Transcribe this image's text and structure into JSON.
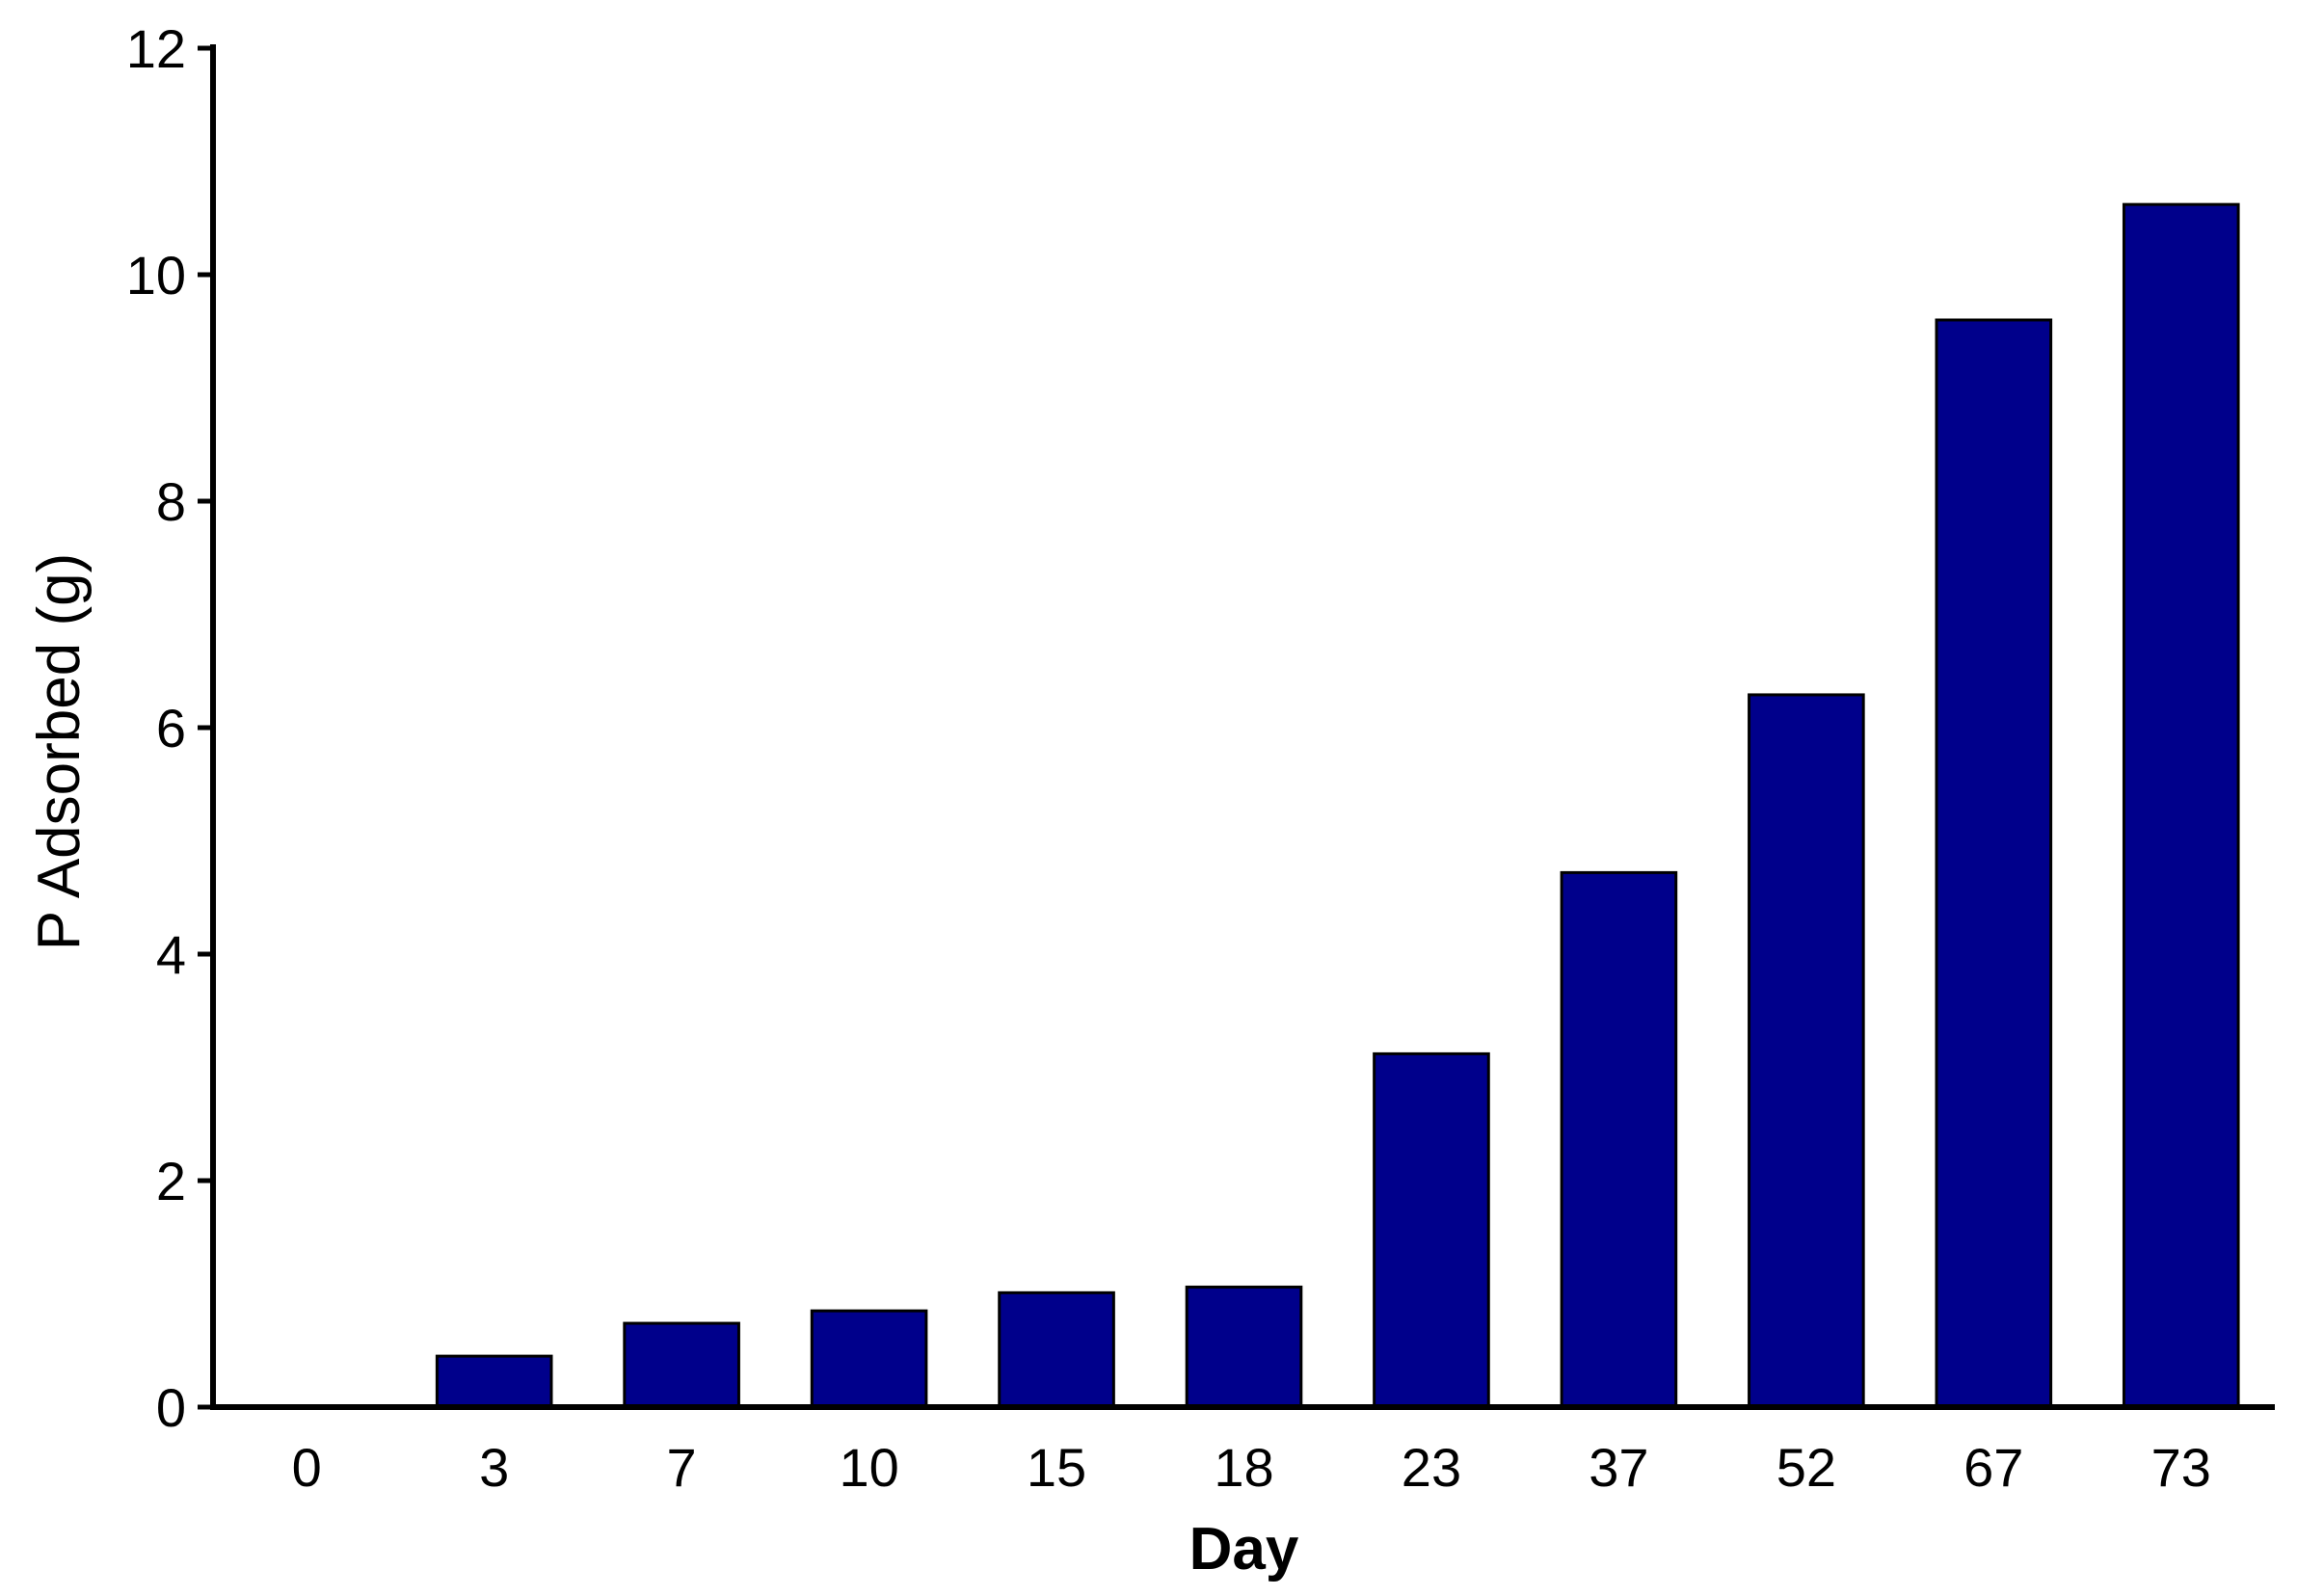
{
  "chart_data": {
    "type": "bar",
    "title": "",
    "xlabel": "Day",
    "ylabel": "P Adsorbed (g)",
    "categories": [
      "0",
      "3",
      "7",
      "10",
      "15",
      "18",
      "23",
      "37",
      "52",
      "67",
      "73"
    ],
    "values": [
      0,
      0.45,
      0.74,
      0.85,
      1.01,
      1.06,
      3.12,
      4.72,
      6.29,
      9.6,
      10.62
    ],
    "ylim": [
      0,
      12
    ],
    "yticks": [
      0,
      2,
      4,
      6,
      8,
      10,
      12
    ],
    "grid": false,
    "legend": "none",
    "colors": {
      "bar_fill": "#00008b",
      "bar_stroke": "#000000",
      "axis": "#000000"
    }
  }
}
